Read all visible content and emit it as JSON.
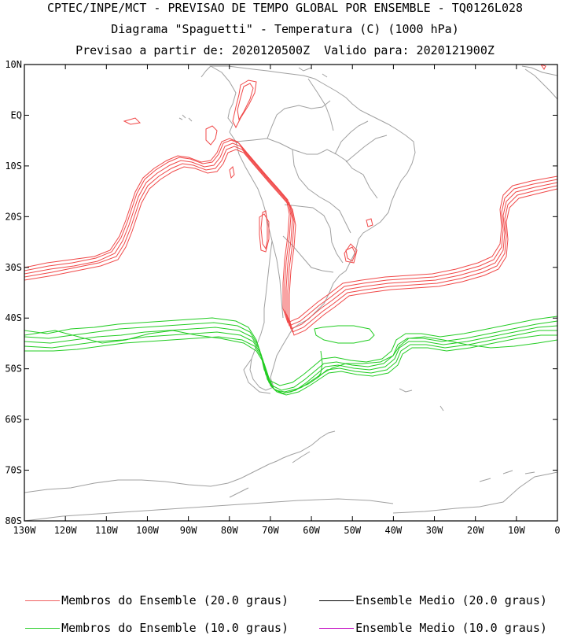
{
  "header": {
    "line1": "CPTEC/INPE/MCT - PREVISAO DE TEMPO GLOBAL POR ENSEMBLE - TQ0126L028",
    "line2": "Diagrama \"Spaguetti\" - Temperatura (C) (1000 hPa)",
    "line3": "Previsao a partir de: 2020120500Z  Valido para: 2020121900Z"
  },
  "axes": {
    "lat_labels": [
      "10N",
      "EQ",
      "10S",
      "20S",
      "30S",
      "40S",
      "50S",
      "60S",
      "70S",
      "80S"
    ],
    "lon_labels": [
      "130W",
      "120W",
      "110W",
      "100W",
      "90W",
      "80W",
      "70W",
      "60W",
      "50W",
      "40W",
      "30W",
      "20W",
      "10W",
      "0"
    ],
    "lat_range": [
      10,
      -80
    ],
    "lon_range": [
      -130,
      0
    ]
  },
  "legend": [
    {
      "label": "Membros do Ensemble (20.0 graus)",
      "color": "#f06060"
    },
    {
      "label": "Ensemble Medio (20.0 graus)",
      "color": "#000000"
    },
    {
      "label": "Membros do Ensemble (10.0 graus)",
      "color": "#30d030"
    },
    {
      "label": "Ensemble Medio (10.0 graus)",
      "color": "#c000c0"
    }
  ],
  "colors": {
    "coast": "#9a9a9a",
    "member20": "#f04848",
    "member10": "#22cc22",
    "frame": "#000000"
  }
}
